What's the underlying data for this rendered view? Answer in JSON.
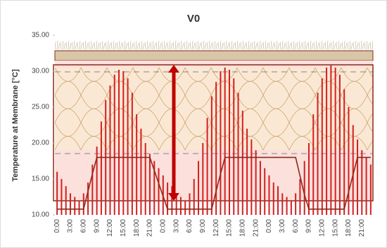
{
  "chart_data": {
    "type": "bar",
    "title": "V0",
    "y_label": "Temperature at Membrane [°C]",
    "categories": [
      "0:00",
      null,
      null,
      "3:00",
      null,
      null,
      "6:00",
      null,
      null,
      "9:00",
      null,
      null,
      "12:00",
      null,
      null,
      "15:00",
      null,
      null,
      "18:00",
      null,
      null,
      "21:00",
      null,
      null,
      "0:00",
      null,
      null,
      "3:00",
      null,
      null,
      "6:00",
      null,
      null,
      "9:00",
      null,
      null,
      "12:00",
      null,
      null,
      "15:00",
      null,
      null,
      "18:00",
      null,
      null,
      "21:00",
      null,
      null,
      "0:00",
      null,
      null,
      "3:00",
      null,
      null,
      "6:00",
      null,
      null,
      "9:00",
      null,
      null,
      "12:00",
      null,
      null,
      "15:00",
      null,
      null,
      "18:00",
      null,
      null,
      "21:00",
      null,
      null
    ],
    "series": [
      {
        "color": "#d42020",
        "values": [
          16,
          15,
          14,
          13,
          12.5,
          12,
          13,
          14.5,
          17,
          19.5,
          23,
          26,
          28,
          29.5,
          30.2,
          30,
          29,
          27,
          24,
          22,
          20,
          18.5,
          17.5,
          16.5,
          15.5,
          14.5,
          14,
          13,
          12.5,
          12,
          13,
          15,
          17.5,
          20,
          23.5,
          26.5,
          28.5,
          30,
          30.5,
          30.2,
          29,
          27,
          24.5,
          22,
          20.5,
          19,
          17.5,
          16.5,
          15.5,
          14.5,
          14,
          13,
          12.5,
          12,
          13,
          15,
          17.5,
          20,
          24,
          27,
          29,
          30.5,
          30.8,
          30.5,
          29.5,
          27.5,
          25,
          22.5,
          20.5,
          19,
          18,
          17
        ]
      },
      {
        "type": "line",
        "color": "#8b2a1a",
        "values": [
          10.8,
          10.8,
          10.8,
          10.8,
          10.8,
          10.8,
          10.8,
          13.3,
          15.7,
          18,
          18,
          18,
          18,
          18,
          18,
          18,
          18,
          18,
          18,
          18,
          18,
          18,
          16.2,
          14.4,
          12.6,
          10.8,
          10.8,
          10.8,
          10.8,
          10.8,
          10.8,
          10.8,
          10.8,
          10.8,
          10.8,
          10.8,
          13.3,
          15.7,
          18,
          18,
          18,
          18,
          18,
          18,
          18,
          18,
          18,
          18,
          18,
          18,
          18,
          18,
          18,
          18,
          18,
          15.4,
          12.8,
          10.8,
          10.8,
          10.8,
          10.8,
          10.8,
          10.8,
          10.8,
          10.8,
          10.8,
          13.2,
          15.6,
          18,
          18,
          18,
          18
        ]
      }
    ],
    "ylim": [
      10,
      35
    ],
    "yticks": [
      {
        "value": 10,
        "label": "10.00"
      },
      {
        "value": 15,
        "label": "15.00"
      },
      {
        "value": 20,
        "label": "20.00"
      },
      {
        "value": 25,
        "label": "25.00"
      },
      {
        "value": 30,
        "label": "30.00"
      },
      {
        "value": 35,
        "label": "35.00"
      }
    ]
  }
}
